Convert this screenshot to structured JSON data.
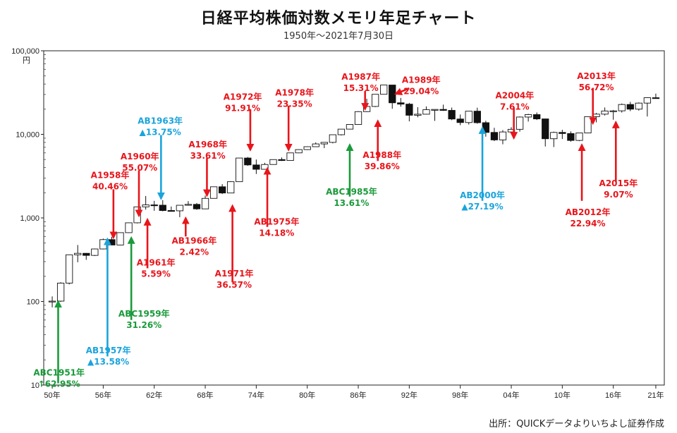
{
  "chart_data": {
    "type": "candlestick",
    "title": "日経平均株価対数メモリ年足チャート",
    "subtitle": "1950年〜2021年7月30日",
    "source": "出所：QUICKデータよりいちよし証券作成",
    "yunit": "円",
    "yscale": "log",
    "ylim": [
      10,
      100000
    ],
    "xlim": [
      1949,
      2022
    ],
    "y_ticks": [
      {
        "value": 10,
        "label": "10"
      },
      {
        "value": 100,
        "label": "100"
      },
      {
        "value": 1000,
        "label": "1,000"
      },
      {
        "value": 10000,
        "label": "10,000"
      },
      {
        "value": 100000,
        "label": "100,000"
      }
    ],
    "x_ticks": [
      {
        "year": 1950,
        "label": "50年"
      },
      {
        "year": 1956,
        "label": "56年"
      },
      {
        "year": 1962,
        "label": "62年"
      },
      {
        "year": 1968,
        "label": "68年"
      },
      {
        "year": 1974,
        "label": "74年"
      },
      {
        "year": 1980,
        "label": "80年"
      },
      {
        "year": 1986,
        "label": "86年"
      },
      {
        "year": 1992,
        "label": "92年"
      },
      {
        "year": 1998,
        "label": "98年"
      },
      {
        "year": 2004,
        "label": "04年"
      },
      {
        "year": 2010,
        "label": "10年"
      },
      {
        "year": 2016,
        "label": "16年"
      },
      {
        "year": 2021,
        "label": "21年"
      }
    ],
    "candles": [
      {
        "year": 1950,
        "open": 100,
        "close": 101,
        "high": 115,
        "low": 85
      },
      {
        "year": 1951,
        "open": 101,
        "close": 166,
        "high": 170,
        "low": 99
      },
      {
        "year": 1952,
        "open": 166,
        "close": 362,
        "high": 365,
        "low": 160
      },
      {
        "year": 1953,
        "open": 362,
        "close": 377,
        "high": 474,
        "low": 295
      },
      {
        "year": 1954,
        "open": 377,
        "close": 356,
        "high": 380,
        "low": 315
      },
      {
        "year": 1955,
        "open": 356,
        "close": 425,
        "high": 430,
        "low": 350
      },
      {
        "year": 1956,
        "open": 425,
        "close": 550,
        "high": 565,
        "low": 420
      },
      {
        "year": 1957,
        "open": 550,
        "close": 474,
        "high": 595,
        "low": 470
      },
      {
        "year": 1958,
        "open": 474,
        "close": 666,
        "high": 670,
        "low": 470
      },
      {
        "year": 1959,
        "open": 666,
        "close": 874,
        "high": 880,
        "low": 660
      },
      {
        "year": 1960,
        "open": 874,
        "close": 1356,
        "high": 1360,
        "low": 860
      },
      {
        "year": 1961,
        "open": 1356,
        "close": 1432,
        "high": 1830,
        "low": 1255
      },
      {
        "year": 1962,
        "open": 1432,
        "close": 1420,
        "high": 1600,
        "low": 1216
      },
      {
        "year": 1963,
        "open": 1420,
        "close": 1226,
        "high": 1634,
        "low": 1200
      },
      {
        "year": 1964,
        "open": 1226,
        "close": 1216,
        "high": 1370,
        "low": 1200
      },
      {
        "year": 1965,
        "open": 1216,
        "close": 1417,
        "high": 1420,
        "low": 1020
      },
      {
        "year": 1966,
        "open": 1417,
        "close": 1452,
        "high": 1588,
        "low": 1400
      },
      {
        "year": 1967,
        "open": 1452,
        "close": 1283,
        "high": 1506,
        "low": 1250
      },
      {
        "year": 1968,
        "open": 1283,
        "close": 1714,
        "high": 1851,
        "low": 1280
      },
      {
        "year": 1969,
        "open": 1714,
        "close": 2359,
        "high": 2360,
        "low": 1710
      },
      {
        "year": 1970,
        "open": 2359,
        "close": 1987,
        "high": 2534,
        "low": 1930
      },
      {
        "year": 1971,
        "open": 1987,
        "close": 2713,
        "high": 2740,
        "low": 1980
      },
      {
        "year": 1972,
        "open": 2713,
        "close": 5207,
        "high": 5210,
        "low": 2700
      },
      {
        "year": 1973,
        "open": 5207,
        "close": 4306,
        "high": 5359,
        "low": 4200
      },
      {
        "year": 1974,
        "open": 4306,
        "close": 3817,
        "high": 5000,
        "low": 3355
      },
      {
        "year": 1975,
        "open": 3817,
        "close": 4358,
        "high": 4565,
        "low": 3800
      },
      {
        "year": 1976,
        "open": 4358,
        "close": 4990,
        "high": 5000,
        "low": 4350
      },
      {
        "year": 1977,
        "open": 4990,
        "close": 4865,
        "high": 5287,
        "low": 4800
      },
      {
        "year": 1978,
        "open": 4865,
        "close": 6001,
        "high": 6030,
        "low": 4850
      },
      {
        "year": 1979,
        "open": 6001,
        "close": 6569,
        "high": 6600,
        "low": 5950
      },
      {
        "year": 1980,
        "open": 6569,
        "close": 7116,
        "high": 7188,
        "low": 6500
      },
      {
        "year": 1981,
        "open": 7116,
        "close": 7681,
        "high": 8019,
        "low": 7100
      },
      {
        "year": 1982,
        "open": 7681,
        "close": 8016,
        "high": 8026,
        "low": 6849
      },
      {
        "year": 1983,
        "open": 8016,
        "close": 9893,
        "high": 9900,
        "low": 7800
      },
      {
        "year": 1984,
        "open": 9893,
        "close": 11542,
        "high": 11577,
        "low": 9700
      },
      {
        "year": 1985,
        "open": 11542,
        "close": 13113,
        "high": 13128,
        "low": 11500
      },
      {
        "year": 1986,
        "open": 13113,
        "close": 18701,
        "high": 18936,
        "low": 13000
      },
      {
        "year": 1987,
        "open": 18701,
        "close": 21564,
        "high": 26646,
        "low": 18500
      },
      {
        "year": 1988,
        "open": 21564,
        "close": 30159,
        "high": 30183,
        "low": 21200
      },
      {
        "year": 1989,
        "open": 30159,
        "close": 38916,
        "high": 38957,
        "low": 30000
      },
      {
        "year": 1990,
        "open": 38916,
        "close": 23849,
        "high": 38950,
        "low": 20222
      },
      {
        "year": 1991,
        "open": 23849,
        "close": 22984,
        "high": 27270,
        "low": 21456
      },
      {
        "year": 1992,
        "open": 22984,
        "close": 16925,
        "high": 23801,
        "low": 14309
      },
      {
        "year": 1993,
        "open": 16925,
        "close": 17417,
        "high": 21148,
        "low": 16000
      },
      {
        "year": 1994,
        "open": 17417,
        "close": 19723,
        "high": 21573,
        "low": 17300
      },
      {
        "year": 1995,
        "open": 19723,
        "close": 19868,
        "high": 19900,
        "low": 14485
      },
      {
        "year": 1996,
        "open": 19868,
        "close": 19361,
        "high": 22666,
        "low": 19100
      },
      {
        "year": 1997,
        "open": 19361,
        "close": 15259,
        "high": 20910,
        "low": 14775
      },
      {
        "year": 1998,
        "open": 15259,
        "close": 13842,
        "high": 17264,
        "low": 12879
      },
      {
        "year": 1999,
        "open": 13842,
        "close": 18934,
        "high": 18950,
        "low": 13100
      },
      {
        "year": 2000,
        "open": 18934,
        "close": 13785,
        "high": 20833,
        "low": 13400
      },
      {
        "year": 2001,
        "open": 13785,
        "close": 10543,
        "high": 14529,
        "low": 9382
      },
      {
        "year": 2002,
        "open": 10543,
        "close": 8579,
        "high": 11979,
        "low": 8303
      },
      {
        "year": 2003,
        "open": 8579,
        "close": 10677,
        "high": 11238,
        "low": 7607
      },
      {
        "year": 2004,
        "open": 10677,
        "close": 11489,
        "high": 12163,
        "low": 10299
      },
      {
        "year": 2005,
        "open": 11489,
        "close": 16111,
        "high": 16344,
        "low": 10770
      },
      {
        "year": 2006,
        "open": 16111,
        "close": 17225,
        "high": 17563,
        "low": 14218
      },
      {
        "year": 2007,
        "open": 17225,
        "close": 15307,
        "high": 18262,
        "low": 14837
      },
      {
        "year": 2008,
        "open": 15307,
        "close": 8859,
        "high": 15156,
        "low": 7162
      },
      {
        "year": 2009,
        "open": 8859,
        "close": 10546,
        "high": 10767,
        "low": 7054
      },
      {
        "year": 2010,
        "open": 10546,
        "close": 10228,
        "high": 11339,
        "low": 8796
      },
      {
        "year": 2011,
        "open": 10228,
        "close": 8455,
        "high": 10857,
        "low": 8160
      },
      {
        "year": 2012,
        "open": 8455,
        "close": 10395,
        "high": 10433,
        "low": 8295
      },
      {
        "year": 2013,
        "open": 10395,
        "close": 16291,
        "high": 16320,
        "low": 10398
      },
      {
        "year": 2014,
        "open": 16291,
        "close": 17450,
        "high": 18030,
        "low": 13910
      },
      {
        "year": 2015,
        "open": 17450,
        "close": 19034,
        "high": 20952,
        "low": 16795
      },
      {
        "year": 2016,
        "open": 19034,
        "close": 19114,
        "high": 19592,
        "low": 14952
      },
      {
        "year": 2017,
        "open": 19114,
        "close": 22765,
        "high": 23382,
        "low": 18224
      },
      {
        "year": 2018,
        "open": 22765,
        "close": 20015,
        "high": 24448,
        "low": 18949
      },
      {
        "year": 2019,
        "open": 20015,
        "close": 23657,
        "high": 24091,
        "low": 19241
      },
      {
        "year": 2020,
        "open": 23657,
        "close": 27444,
        "high": 27603,
        "low": 16358
      },
      {
        "year": 2021,
        "open": 27444,
        "close": 27284,
        "high": 30714,
        "low": 26954
      }
    ],
    "annotations": [
      {
        "id": "abc1951",
        "lines": [
          "ABC1951年",
          "↑62.95%"
        ],
        "color": "#1a9a3a",
        "year": 1950.7,
        "tip": 100,
        "from": 10.5,
        "text_year": 1950.8,
        "text_value": 13,
        "align": "center"
      },
      {
        "id": "ab1957",
        "lines": [
          "AB1957年",
          "▲13.58%"
        ],
        "color": "#1aa4dc",
        "year": 1956.5,
        "tip": 560,
        "from": 22,
        "text_year": 1956.6,
        "text_value": 24,
        "align": "center"
      },
      {
        "id": "a1958",
        "lines": [
          "A1958年",
          "40.46%"
        ],
        "color": "#e8151b",
        "year": 1957.2,
        "tip": 580,
        "from": 2200,
        "text_year": 1956.8,
        "text_value": 3000,
        "align": "center"
      },
      {
        "id": "abc1959",
        "lines": [
          "ABC1959年",
          "31.26%"
        ],
        "color": "#1a9a3a",
        "year": 1959.3,
        "tip": 580,
        "from": 60,
        "text_year": 1960.8,
        "text_value": 66,
        "align": "center"
      },
      {
        "id": "a1960",
        "lines": [
          "A1960年",
          "55.07%"
        ],
        "color": "#e8151b",
        "year": 1960.2,
        "tip": 1060,
        "from": 3700,
        "text_year": 1960.3,
        "text_value": 5000,
        "align": "center"
      },
      {
        "id": "a1961",
        "lines": [
          "A1961年",
          "5.59%"
        ],
        "color": "#e8151b",
        "year": 1961.2,
        "tip": 960,
        "from": 250,
        "text_year": 1962.2,
        "text_value": 270,
        "align": "center"
      },
      {
        "id": "ab1963",
        "lines": [
          "AB1963年",
          "▲13.75%"
        ],
        "color": "#1aa4dc",
        "year": 1962.8,
        "tip": 1700,
        "from": 9800,
        "text_year": 1962.7,
        "text_value": 13400,
        "align": "center"
      },
      {
        "id": "ab1966",
        "lines": [
          "AB1966年",
          "2.42%"
        ],
        "color": "#e8151b",
        "year": 1965.7,
        "tip": 1000,
        "from": 600,
        "text_year": 1966.7,
        "text_value": 490,
        "align": "center"
      },
      {
        "id": "a1968",
        "lines": [
          "A1968年",
          "33.61%"
        ],
        "color": "#e8151b",
        "year": 1968.2,
        "tip": 1850,
        "from": 5200,
        "text_year": 1968.3,
        "text_value": 7000,
        "align": "center"
      },
      {
        "id": "a1971",
        "lines": [
          "A1971年",
          "36.57%"
        ],
        "color": "#e8151b",
        "year": 1971.2,
        "tip": 1400,
        "from": 170,
        "text_year": 1971.4,
        "text_value": 200,
        "align": "center"
      },
      {
        "id": "a1972",
        "lines": [
          "A1972年",
          "91.91%"
        ],
        "color": "#e8151b",
        "year": 1973.3,
        "tip": 6500,
        "from": 20000,
        "text_year": 1972.4,
        "text_value": 26000,
        "align": "center"
      },
      {
        "id": "ab1975",
        "lines": [
          "AB1975年",
          "14.18%"
        ],
        "color": "#e8151b",
        "year": 1975.3,
        "tip": 3900,
        "from": 780,
        "text_year": 1976.4,
        "text_value": 830,
        "align": "center"
      },
      {
        "id": "a1978",
        "lines": [
          "A1978年",
          "23.35%"
        ],
        "color": "#e8151b",
        "year": 1977.8,
        "tip": 6500,
        "from": 22000,
        "text_year": 1978.5,
        "text_value": 29000,
        "align": "center"
      },
      {
        "id": "abc1985",
        "lines": [
          "ABC1985年",
          "13.61%"
        ],
        "color": "#1a9a3a",
        "year": 1985.0,
        "tip": 7500,
        "from": 1800,
        "text_year": 1985.2,
        "text_value": 1900,
        "align": "center"
      },
      {
        "id": "a1987",
        "lines": [
          "A1987年",
          "15.31%"
        ],
        "color": "#e8151b",
        "year": 1986.8,
        "tip": 20000,
        "from": 33000,
        "text_year": 1986.3,
        "text_value": 45000,
        "align": "center"
      },
      {
        "id": "a1988",
        "lines": [
          "A1988年",
          "39.86%"
        ],
        "color": "#e8151b",
        "year": 1988.3,
        "tip": 14500,
        "from": 4800,
        "text_year": 1988.8,
        "text_value": 5200,
        "align": "center"
      },
      {
        "id": "a1989",
        "lines": [
          "A1989年",
          "29.04%"
        ],
        "color": "#e8151b",
        "year": 1990.7,
        "tip": 40000,
        "from": 40000,
        "text_year": 1993.4,
        "text_value": 41500,
        "align": "center"
      },
      {
        "id": "ab2000",
        "lines": [
          "AB2000年",
          "▲27.19%"
        ],
        "color": "#1aa4dc",
        "year": 2000.6,
        "tip": 12000,
        "from": 1600,
        "text_year": 2000.6,
        "text_value": 1720,
        "align": "center"
      },
      {
        "id": "a2004",
        "lines": [
          "A2004年",
          "7.61%"
        ],
        "color": "#e8151b",
        "year": 2004.3,
        "tip": 9000,
        "from": 21000,
        "text_year": 2004.4,
        "text_value": 27000,
        "align": "center"
      },
      {
        "id": "ab2012",
        "lines": [
          "AB2012年",
          "22.94%"
        ],
        "color": "#e8151b",
        "year": 2012.3,
        "tip": 7500,
        "from": 1600,
        "text_year": 2013.0,
        "text_value": 1080,
        "align": "center"
      },
      {
        "id": "a2013",
        "lines": [
          "A2013年",
          "56.72%"
        ],
        "color": "#e8151b",
        "year": 2013.6,
        "tip": 13500,
        "from": 36000,
        "text_year": 2014.0,
        "text_value": 46000,
        "align": "center"
      },
      {
        "id": "a2015",
        "lines": [
          "A2015年",
          "9.07%"
        ],
        "color": "#e8151b",
        "year": 2016.3,
        "tip": 14000,
        "from": 2700,
        "text_year": 2016.6,
        "text_value": 2400,
        "align": "center"
      }
    ]
  }
}
